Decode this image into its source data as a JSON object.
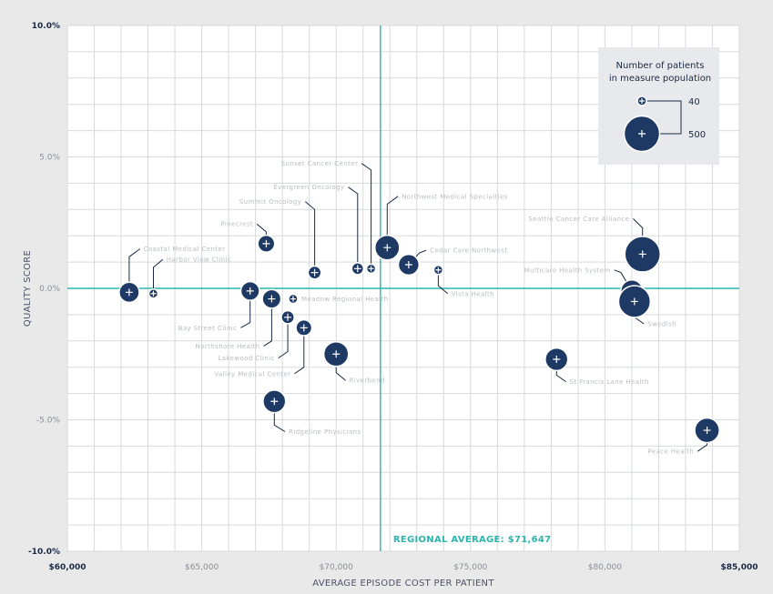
{
  "chart_data": {
    "type": "scatter",
    "xlabel": "AVERAGE EPISODE COST PER PATIENT",
    "ylabel": "QUALITY SCORE",
    "xlim": [
      60000,
      85000
    ],
    "ylim": [
      -10,
      10
    ],
    "x_ticks": [
      {
        "value": 60000,
        "label": "$60,000",
        "bold": true
      },
      {
        "value": 65000,
        "label": "$65,000",
        "bold": false
      },
      {
        "value": 70000,
        "label": "$70,000",
        "bold": false
      },
      {
        "value": 75000,
        "label": "$75,000",
        "bold": false
      },
      {
        "value": 80000,
        "label": "$80,000",
        "bold": false
      },
      {
        "value": 85000,
        "label": "$85,000",
        "bold": true
      }
    ],
    "y_ticks": [
      {
        "value": 10,
        "label": "10.0%",
        "bold": true
      },
      {
        "value": 5,
        "label": "5.0%",
        "bold": false
      },
      {
        "value": 0,
        "label": "0.0%",
        "bold": false
      },
      {
        "value": -5,
        "label": "-5.0%",
        "bold": false
      },
      {
        "value": -10,
        "label": "-10.0%",
        "bold": true
      }
    ],
    "grid": true,
    "colors": {
      "bubble": "#1e3a64",
      "reference": "#2bb5ad",
      "grid": "#d8d9dc",
      "background": "#ffffff"
    },
    "reference_lines": {
      "x": 71647,
      "y": 0,
      "label": "REGIONAL AVERAGE: $71,647"
    },
    "size_legend": {
      "title_line1": "Number of patients",
      "title_line2": "in measure population",
      "items": [
        {
          "value": 40,
          "label": "40"
        },
        {
          "value": 500,
          "label": "500"
        }
      ]
    },
    "points": [
      {
        "x": 62300,
        "y": -0.15,
        "n": 120,
        "label": "Coastal Medical Center",
        "leader": [
          [
            62300,
            -0.15
          ],
          [
            62300,
            1.2
          ],
          [
            62700,
            1.5
          ]
        ]
      },
      {
        "x": 63200,
        "y": -0.2,
        "n": 40,
        "label": "Harbor View Clinic",
        "leader": [
          [
            63200,
            -0.2
          ],
          [
            63200,
            0.8
          ],
          [
            63550,
            1.1
          ]
        ]
      },
      {
        "x": 66800,
        "y": -0.1,
        "n": 100,
        "label": "Bay Street Clinic",
        "leader": [
          [
            66800,
            -0.1
          ],
          [
            66800,
            -1.3
          ],
          [
            66450,
            -1.5
          ]
        ]
      },
      {
        "x": 67400,
        "y": 1.7,
        "n": 80,
        "label": "Pinecrest",
        "leader": [
          [
            67400,
            1.7
          ],
          [
            67400,
            2.15
          ],
          [
            67050,
            2.45
          ]
        ]
      },
      {
        "x": 67600,
        "y": -0.4,
        "n": 100,
        "label": "Northshore Health",
        "leader": [
          [
            67600,
            -0.4
          ],
          [
            67600,
            -2.0
          ],
          [
            67300,
            -2.2
          ]
        ]
      },
      {
        "x": 67700,
        "y": -4.3,
        "n": 160,
        "label": "Ridgeline Physicians",
        "leader": [
          [
            67700,
            -4.3
          ],
          [
            67700,
            -5.2
          ],
          [
            68100,
            -5.45
          ]
        ]
      },
      {
        "x": 68200,
        "y": -1.1,
        "n": 50,
        "label": "Lakewood Clinic",
        "leader": [
          [
            68200,
            -1.1
          ],
          [
            68200,
            -2.4
          ],
          [
            67850,
            -2.65
          ]
        ]
      },
      {
        "x": 68400,
        "y": -0.4,
        "n": 40,
        "label": "Meadow Regional Health",
        "leader": []
      },
      {
        "x": 68800,
        "y": -1.5,
        "n": 70,
        "label": "Valley Medical Center",
        "leader": [
          [
            68800,
            -1.5
          ],
          [
            68800,
            -3.0
          ],
          [
            68450,
            -3.25
          ]
        ]
      },
      {
        "x": 69200,
        "y": 0.6,
        "n": 50,
        "label": "Summit Oncology",
        "leader": [
          [
            69200,
            0.6
          ],
          [
            69200,
            3.0
          ],
          [
            68850,
            3.3
          ]
        ]
      },
      {
        "x": 70000,
        "y": -2.5,
        "n": 200,
        "label": "Riverbend",
        "leader": [
          [
            70000,
            -2.5
          ],
          [
            70000,
            -3.2
          ],
          [
            70350,
            -3.5
          ]
        ]
      },
      {
        "x": 70800,
        "y": 0.75,
        "n": 45,
        "label": "Evergreen Oncology",
        "leader": [
          [
            70800,
            0.75
          ],
          [
            70800,
            3.6
          ],
          [
            70450,
            3.85
          ]
        ]
      },
      {
        "x": 71300,
        "y": 0.75,
        "n": 40,
        "label": "Sunset Cancer Center",
        "leader": [
          [
            71300,
            0.75
          ],
          [
            71300,
            4.5
          ],
          [
            70950,
            4.75
          ]
        ]
      },
      {
        "x": 71900,
        "y": 1.55,
        "n": 200,
        "label": "Northwest Medical Specialties",
        "leader": [
          [
            71900,
            1.55
          ],
          [
            71900,
            3.2
          ],
          [
            72300,
            3.5
          ]
        ]
      },
      {
        "x": 72700,
        "y": 0.9,
        "n": 130,
        "label": "Cedar Care Northwest",
        "leader": [
          [
            72700,
            0.9
          ],
          [
            73100,
            1.35
          ],
          [
            73350,
            1.45
          ]
        ]
      },
      {
        "x": 73800,
        "y": 0.7,
        "n": 40,
        "label": "Vista Health",
        "leader": [
          [
            73800,
            0.7
          ],
          [
            73800,
            0.1
          ],
          [
            74150,
            -0.2
          ]
        ]
      },
      {
        "x": 78200,
        "y": -2.7,
        "n": 160,
        "label": "St Francis Lane Health",
        "leader": [
          [
            78200,
            -2.7
          ],
          [
            78200,
            -3.3
          ],
          [
            78550,
            -3.55
          ]
        ]
      },
      {
        "x": 81000,
        "y": -0.1,
        "n": 150,
        "label": "Multicare Health System",
        "leader": [
          [
            81000,
            -0.1
          ],
          [
            80600,
            0.6
          ],
          [
            80350,
            0.7
          ]
        ]
      },
      {
        "x": 81100,
        "y": -0.5,
        "n": 380,
        "label": "Swedish",
        "leader": [
          [
            81100,
            -0.5
          ],
          [
            81100,
            -1.1
          ],
          [
            81450,
            -1.35
          ]
        ]
      },
      {
        "x": 81400,
        "y": 1.3,
        "n": 500,
        "label": "Seattle Cancer Care Alliance",
        "leader": [
          [
            81400,
            1.3
          ],
          [
            81400,
            2.3
          ],
          [
            81050,
            2.65
          ]
        ]
      },
      {
        "x": 83800,
        "y": -5.4,
        "n": 200,
        "label": "Peace Health",
        "leader": [
          [
            83800,
            -5.4
          ],
          [
            83800,
            -5.95
          ],
          [
            83450,
            -6.2
          ]
        ]
      }
    ]
  }
}
